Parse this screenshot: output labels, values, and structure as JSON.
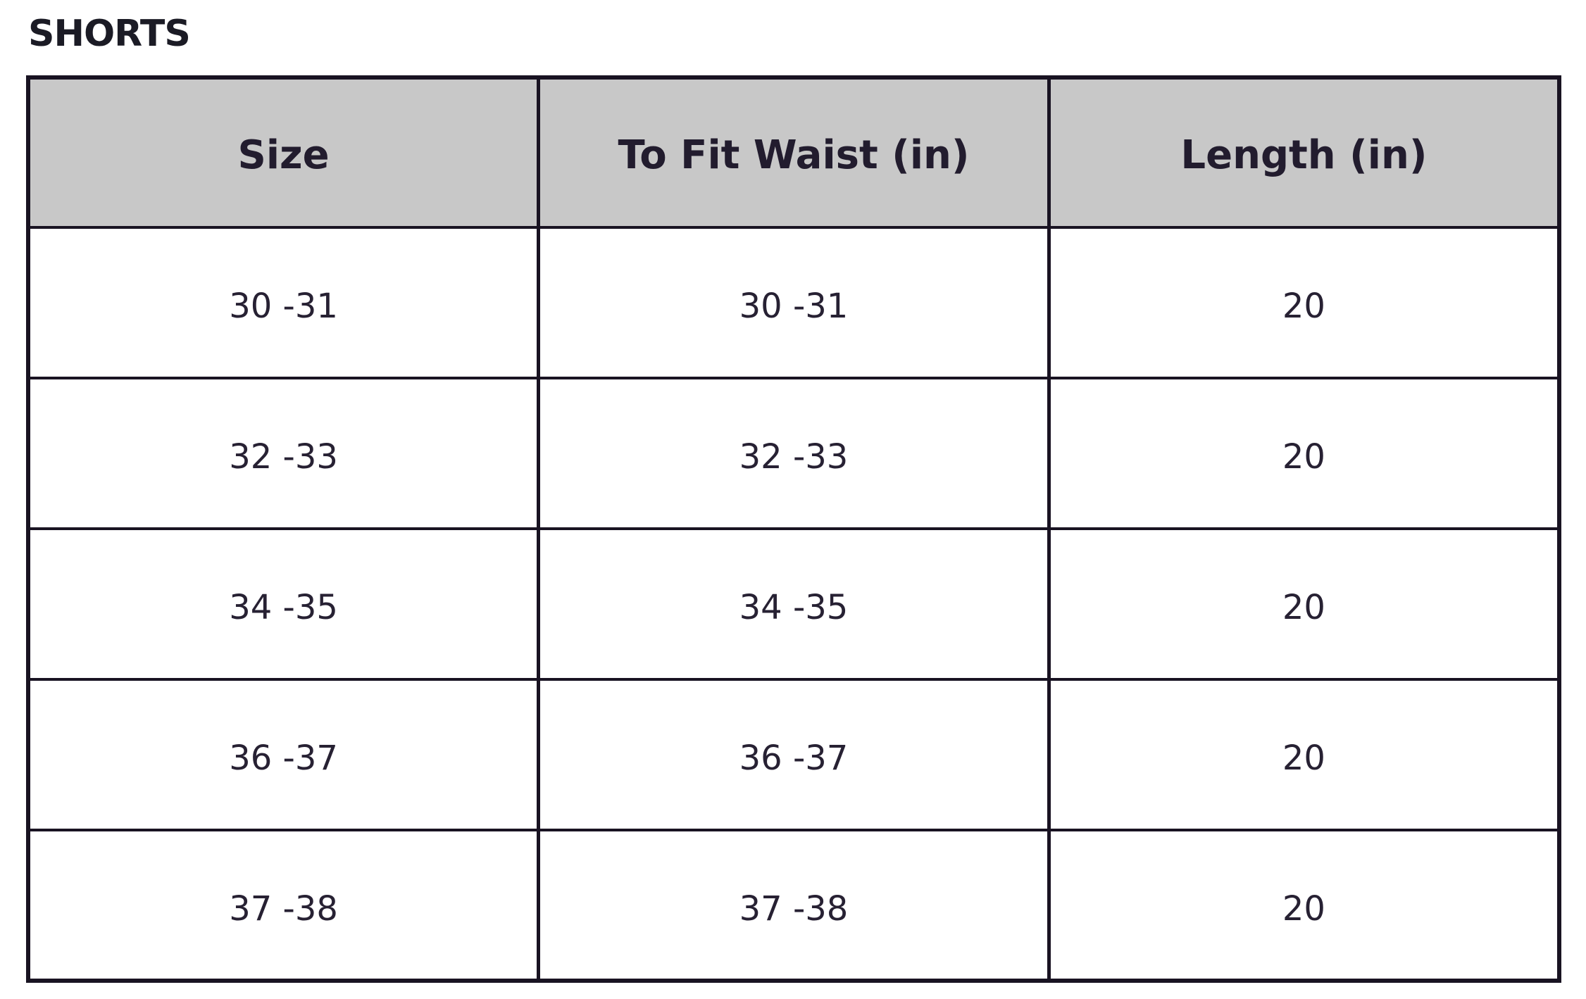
{
  "page": {
    "title": "SHORTS"
  },
  "table": {
    "columns": [
      "Size",
      "To Fit Waist (in)",
      "Length (in)"
    ],
    "rows": [
      {
        "cells": [
          "30 -31",
          "30 -31",
          "20"
        ]
      },
      {
        "cells": [
          "32 -33",
          "32 -33",
          "20"
        ]
      },
      {
        "cells": [
          "34 -35",
          "34 -35",
          "20"
        ]
      },
      {
        "cells": [
          "36 -37",
          "36 -37",
          "20"
        ]
      },
      {
        "cells": [
          "37 -38",
          "37 -38",
          "20"
        ]
      }
    ]
  },
  "colors": {
    "background": "#ffffff",
    "border": "#191322",
    "header_bg": "#c8c8c8",
    "header_text": "#221c2e",
    "text": "#272133",
    "title": "#1b1b25"
  }
}
